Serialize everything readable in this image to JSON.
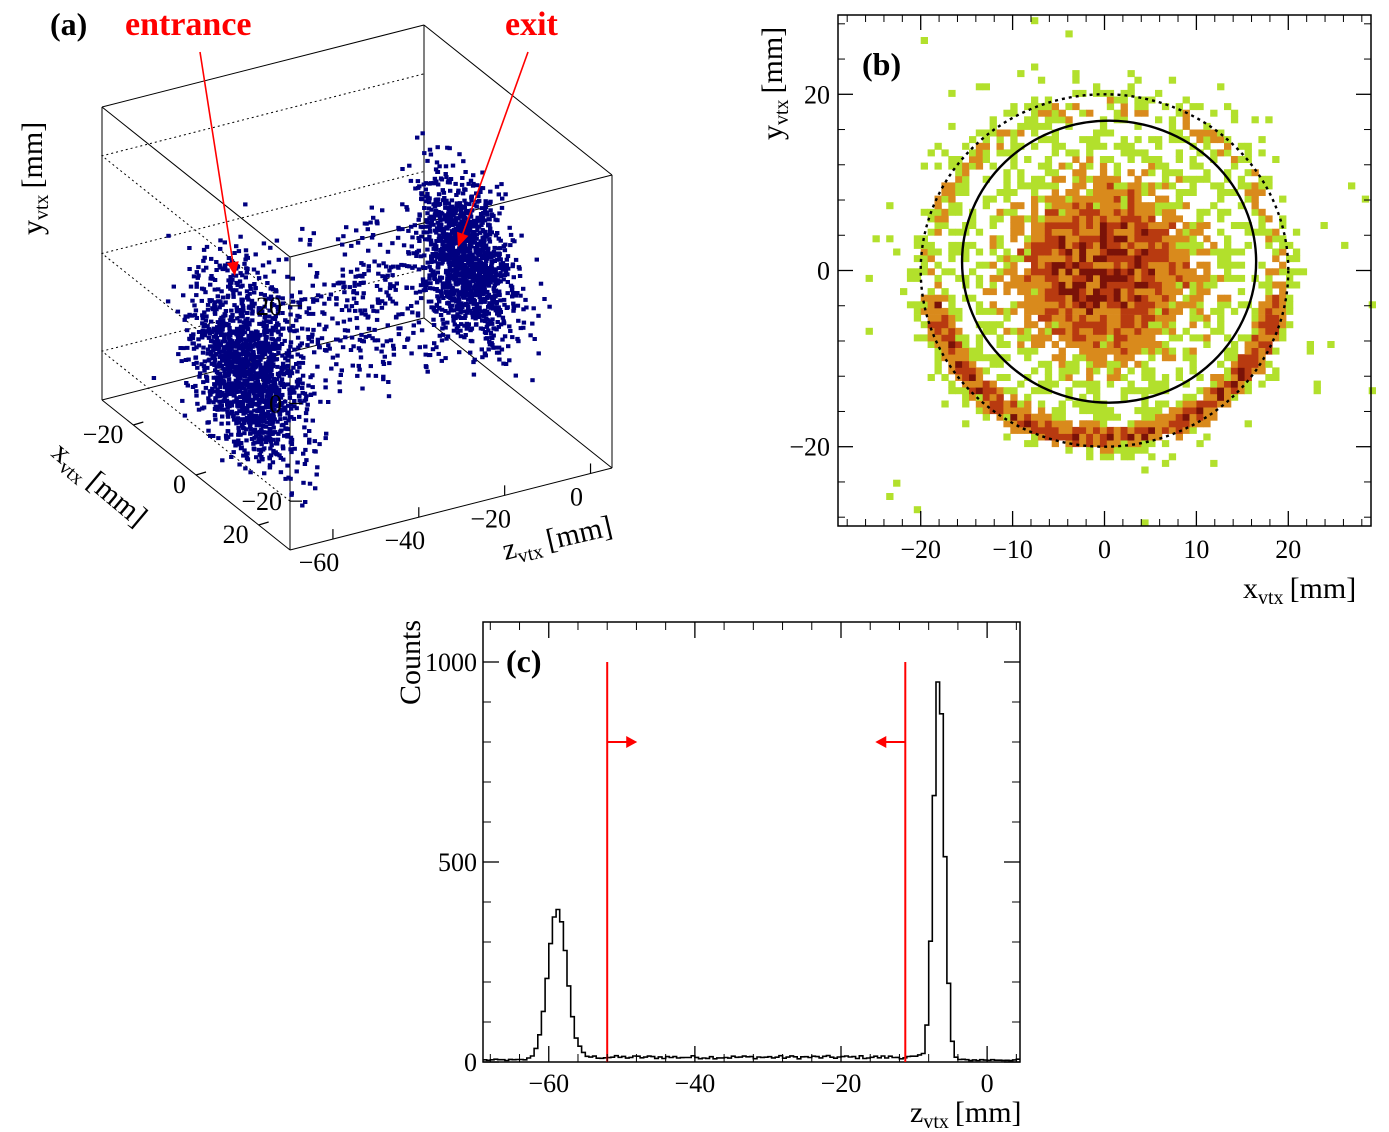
{
  "chart_data": [
    {
      "panel": "(a)",
      "type": "scatter",
      "dimensions": 3,
      "annotations": [
        "entrance",
        "exit"
      ],
      "axes": {
        "x": {
          "label": "x",
          "sub": "vtx",
          "unit": "[mm]",
          "ticks": [
            20,
            0,
            -20
          ],
          "range": [
            -30,
            30
          ]
        },
        "y": {
          "label": "y",
          "sub": "vtx",
          "unit": "[mm]",
          "ticks": [
            20,
            0,
            -20
          ],
          "range": [
            -30,
            30
          ]
        },
        "z": {
          "label": "z",
          "sub": "vtx",
          "unit": "[mm]",
          "ticks": [
            -60,
            -40,
            -20,
            0
          ],
          "range": [
            -70,
            5
          ]
        }
      },
      "clusters": [
        {
          "name": "entrance",
          "z_center": -58,
          "y_center": -12,
          "x_center": 0,
          "spread": 8
        },
        {
          "name": "exit",
          "z_center": -7,
          "y_center": 0,
          "x_center": 0,
          "spread": 7
        }
      ],
      "marker_color": "#000080"
    },
    {
      "panel": "(b)",
      "type": "heatmap",
      "axes": {
        "x": {
          "label": "x",
          "sub": "vtx",
          "unit": "[mm]",
          "ticks": [
            -20,
            -10,
            0,
            10,
            20
          ],
          "range": [
            -29,
            29
          ]
        },
        "y": {
          "label": "y",
          "sub": "vtx",
          "unit": "[mm]",
          "ticks": [
            -20,
            0,
            20
          ],
          "range": [
            -29,
            29
          ]
        }
      },
      "circles": [
        {
          "style": "solid",
          "center": [
            0.5,
            1
          ],
          "radius": 16
        },
        {
          "style": "dotted",
          "center": [
            0,
            0
          ],
          "radius": 20
        }
      ],
      "colors": [
        "#b2e02c",
        "#d98a1c",
        "#b83a10",
        "#7a1208"
      ]
    },
    {
      "panel": "(c)",
      "type": "histogram",
      "axes": {
        "x": {
          "label": "z",
          "sub": "vtx",
          "unit": "[mm]",
          "ticks": [
            -60,
            -40,
            -20,
            0
          ],
          "range": [
            -69,
            4.5
          ]
        },
        "y": {
          "label": "Counts",
          "ticks": [
            0,
            500,
            1000
          ],
          "range": [
            0,
            1100
          ]
        }
      },
      "bin_width": 0.5,
      "peaks": [
        {
          "center": -58.8,
          "height": 378
        },
        {
          "center": -6.6,
          "height": 965
        }
      ],
      "background_level": 12,
      "cuts": [
        {
          "z": -52,
          "arrow": "right",
          "counts_at": 800
        },
        {
          "z": -11.2,
          "arrow": "left",
          "counts_at": 800
        }
      ],
      "cut_color": "#ff0000"
    }
  ]
}
